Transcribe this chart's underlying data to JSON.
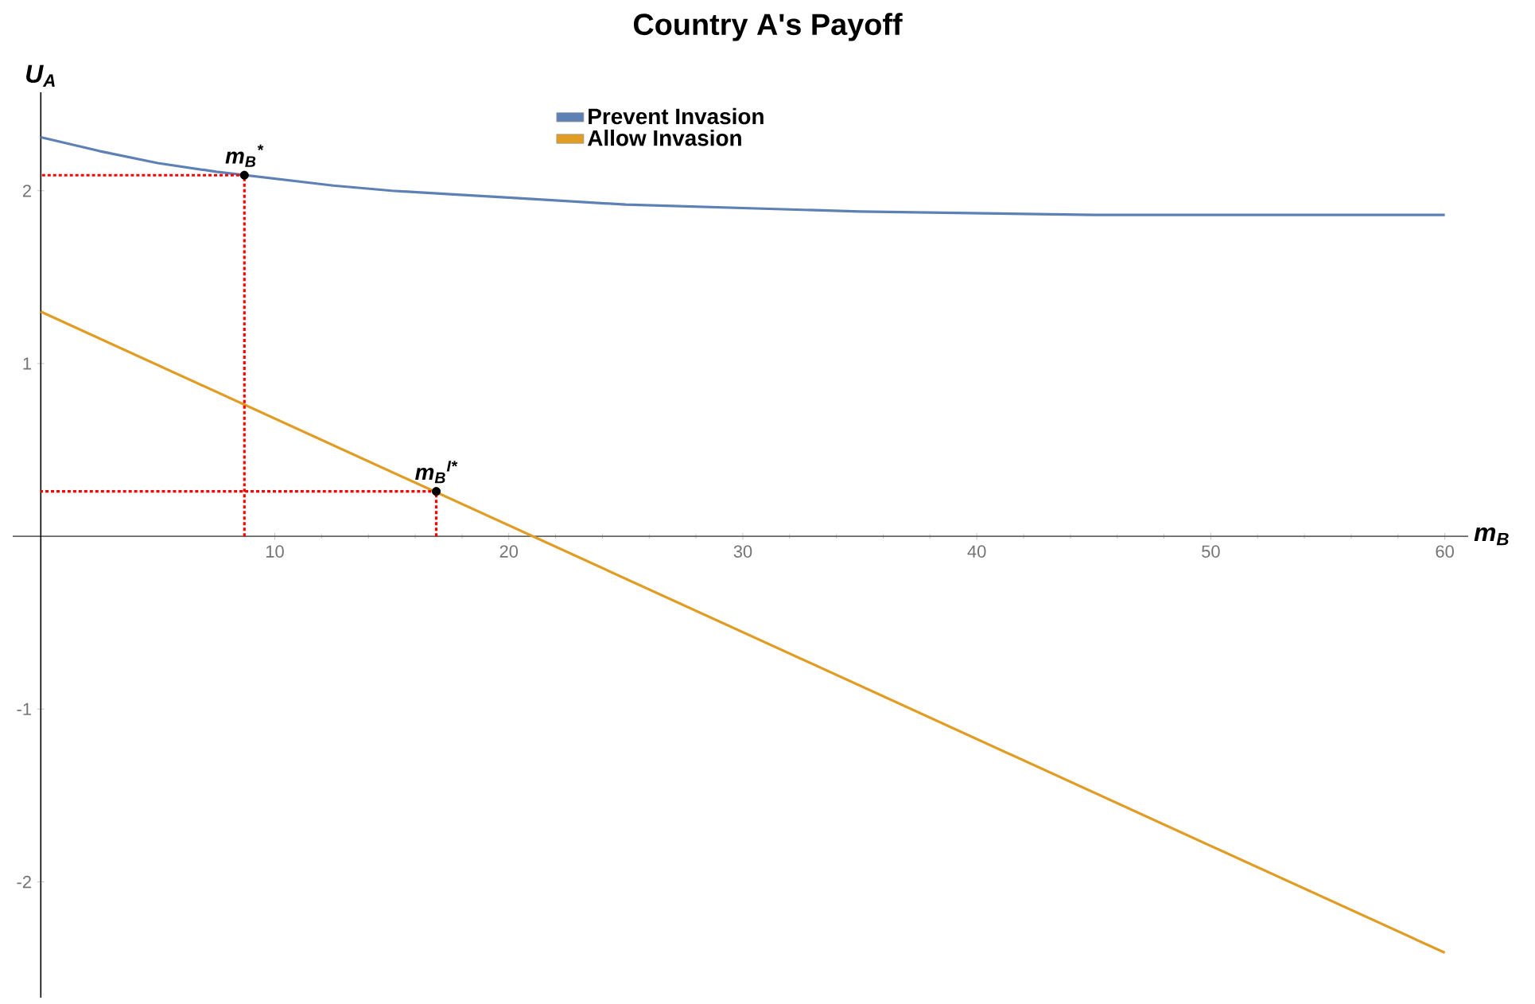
{
  "chart_data": {
    "type": "line",
    "title": "Country A's Payoff",
    "xlabel": "m$_{B}$",
    "ylabel": "U$_{A}$",
    "xlim": [
      -1.2,
      61
    ],
    "ylim": [
      -2.67,
      2.57
    ],
    "xticks": [
      10,
      20,
      30,
      40,
      50,
      60
    ],
    "yticks": [
      -2,
      -1,
      1,
      2
    ],
    "legend": "top",
    "grid": false,
    "marker": "none",
    "line_style": "solid",
    "series": [
      {
        "name": "Prevent Invasion",
        "color": "#5e81b5",
        "x": [
          0,
          2.5,
          5,
          7.5,
          10,
          12.5,
          15,
          17.5,
          20,
          25,
          30,
          35,
          40,
          45,
          50,
          55,
          60
        ],
        "values": [
          2.31,
          2.23,
          2.16,
          2.11,
          2.07,
          2.03,
          2.0,
          1.98,
          1.96,
          1.92,
          1.9,
          1.88,
          1.87,
          1.86,
          1.86,
          1.86,
          1.86
        ]
      },
      {
        "name": "Allow Invasion",
        "color": "#e19c24",
        "x": [
          0,
          60
        ],
        "values": [
          1.3,
          -2.41
        ]
      },
      {
        "type": "line",
        "color": "#ff0000",
        "line_style": "dashed",
        "x": [
          8.7,
          8.7,
          0
        ],
        "values": [
          0,
          2.09,
          2.09
        ]
      },
      {
        "type": "line",
        "color": "#ff0000",
        "line_style": "dashed",
        "x": [
          16.9,
          16.9,
          0
        ],
        "values": [
          0,
          0.26,
          0.26
        ]
      },
      {
        "type": "scatter",
        "color": "#000000",
        "marker": "circle",
        "x": [
          8.7,
          16.9
        ],
        "values": [
          2.09,
          0.26
        ]
      }
    ],
    "annotations": [
      {
        "text": "m$_{B}$$^{*}$",
        "x": 8.7,
        "y": 2.09
      },
      {
        "text": "m$_{B}$$^{I*}$",
        "x": 16.9,
        "y": 0.26
      }
    ]
  }
}
